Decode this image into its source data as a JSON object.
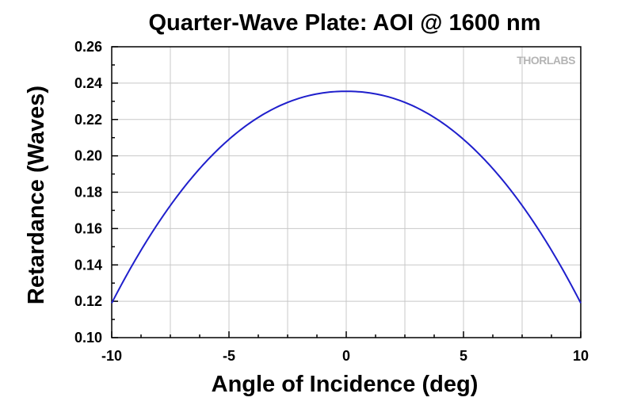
{
  "chart_data": {
    "type": "line",
    "title": "Quarter-Wave Plate: AOI @ 1600 nm",
    "xlabel": "Angle of Incidence (deg)",
    "ylabel": "Retardance (Waves)",
    "xlim": [
      -10,
      10
    ],
    "ylim": [
      0.1,
      0.26
    ],
    "xticks": [
      "-10",
      "-5",
      "0",
      "5",
      "10"
    ],
    "xtick_values": [
      -10,
      -5,
      0,
      5,
      10
    ],
    "yticks": [
      "0.10",
      "0.12",
      "0.14",
      "0.16",
      "0.18",
      "0.20",
      "0.22",
      "0.24",
      "0.26"
    ],
    "ytick_values": [
      0.1,
      0.12,
      0.14,
      0.16,
      0.18,
      0.2,
      0.22,
      0.24,
      0.26
    ],
    "grid": true,
    "watermark": "THORLABS",
    "line_color": "#1f1fcc",
    "series": [
      {
        "x": [
          -10,
          -9,
          -8,
          -7,
          -6,
          -5,
          -4,
          -3,
          -2,
          -1,
          0,
          1,
          2,
          3,
          4,
          5,
          6,
          7,
          8,
          9,
          10
        ],
        "y": [
          0.119,
          0.1395,
          0.1577,
          0.1738,
          0.1878,
          0.1996,
          0.2092,
          0.2167,
          0.222,
          0.2252,
          0.2355,
          0.2252,
          0.222,
          0.2167,
          0.2092,
          0.1996,
          0.1878,
          0.1738,
          0.1577,
          0.1395,
          0.119
        ]
      }
    ]
  }
}
